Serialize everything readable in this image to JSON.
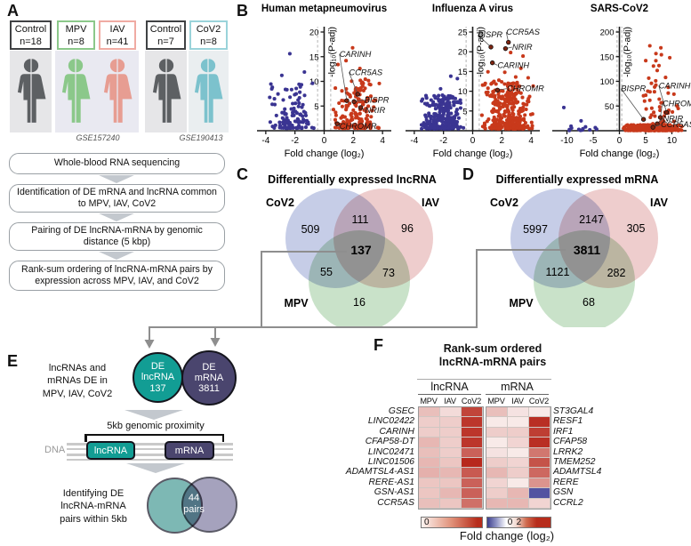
{
  "panelA": {
    "label": "A",
    "cohorts": [
      {
        "group": "Control",
        "n": "n=18",
        "border": "#404244",
        "color": "#5d6063"
      },
      {
        "group": "MPV",
        "n": "n=8",
        "border": "#8bc88a",
        "color": "#8bc88a"
      },
      {
        "group": "IAV",
        "n": "n=41",
        "border": "#f0aba3",
        "color": "#e79d92"
      },
      {
        "group": "Control",
        "n": "n=7",
        "border": "#404244",
        "color": "#5d6063"
      },
      {
        "group": "CoV2",
        "n": "n=8",
        "border": "#9ad3da",
        "color": "#7cc2cd"
      }
    ],
    "studies": [
      "GSE157240",
      "GSE190413"
    ],
    "steps": [
      "Whole-blood RNA sequencing",
      "Identification of DE mRNA and lncRNA common to MPV, IAV, CoV2",
      "Pairing of DE lncRNA-mRNA by genomic distance (5 kbp)",
      "Rank-sum ordering of lncRNA-mRNA pairs by expression across MPV, IAV, and CoV2"
    ]
  },
  "panelB": {
    "label": "B"
  },
  "panelC": {
    "label": "C"
  },
  "panelD": {
    "label": "D"
  },
  "panelE": {
    "label": "E",
    "intro_lines": [
      "lncRNAs and",
      "mRNAs DE in",
      "MPV, IAV, CoV2"
    ],
    "lnc_circle": {
      "lines": [
        "DE",
        "lncRNA",
        "137"
      ],
      "color": "#129d94"
    },
    "mrna_circle": {
      "lines": [
        "DE",
        "mRNA",
        "3811"
      ],
      "color": "#4a456e"
    },
    "proximity_label": "5kb genomic proximity",
    "dna_label": "DNA",
    "lnc_box": "lncRNA",
    "mrna_box": "mRNA",
    "result_lines": [
      "Identifying DE",
      "lncRNA-mRNA",
      "pairs within 5kb"
    ],
    "venn": {
      "line1": "44",
      "line2": "pairs",
      "left_color": "#7db8b4",
      "right_color": "#a5a2bd"
    }
  },
  "panelF": {
    "label": "F"
  },
  "chart_data": [
    {
      "id": "volcano_mpv",
      "type": "scatter",
      "subtype": "volcano",
      "title": "Human metapneumovirus",
      "xlabel": "Fold change (log₂)",
      "ylabel": "-log₁₀(P-adj)",
      "xlim": [
        -4.6,
        4.6
      ],
      "ylim": [
        0,
        20
      ],
      "xticks": [
        -4,
        -2,
        0,
        2,
        4
      ],
      "yticks": [
        5,
        10,
        15,
        20
      ],
      "threshold_x": [
        -0.45,
        0.45
      ],
      "series": [
        {
          "name": "downregulated",
          "color": "#3a3492",
          "n": 120,
          "x_range": [
            -3.9,
            -0.55
          ],
          "y_max": 9.5,
          "pow": 2.1,
          "seed": 11,
          "extra": [
            [
              -2.35,
              15.6
            ],
            [
              -2.9,
              11.2
            ],
            [
              -1.35,
              11.9
            ],
            [
              -3.55,
              8.8
            ],
            [
              -0.8,
              9.6
            ]
          ]
        },
        {
          "name": "upregulated",
          "color": "#c8391b",
          "n": 175,
          "x_range": [
            0.55,
            3.95
          ],
          "y_max": 10.5,
          "pow": 2.1,
          "seed": 22,
          "extra": [
            [
              1.95,
              16.8
            ],
            [
              1.5,
              14.2
            ],
            [
              2.45,
              12.6
            ],
            [
              0.95,
              13.4
            ],
            [
              3.1,
              9.4
            ],
            [
              2.8,
              8.6
            ],
            [
              3.5,
              6.2
            ]
          ]
        }
      ],
      "labeled_genes": [
        {
          "name": "CARINH",
          "x": 1.55,
          "y": 6.1,
          "lx": 1.05,
          "ly": 15.0
        },
        {
          "name": "CCR5AS",
          "x": 2.3,
          "y": 7.4,
          "lx": 1.7,
          "ly": 11.3
        },
        {
          "name": "BISPR",
          "x": 2.05,
          "y": 5.9,
          "lx": 2.75,
          "ly": 5.7
        },
        {
          "name": "NRIR",
          "x": 2.5,
          "y": 4.7,
          "lx": 2.8,
          "ly": 3.6
        },
        {
          "name": "CHROMR",
          "x": 0.9,
          "y": 1.4,
          "lx": 1.05,
          "ly": 0.35
        }
      ]
    },
    {
      "id": "volcano_iav",
      "type": "scatter",
      "subtype": "volcano",
      "title": "Influenza A virus",
      "xlabel": "Fold change (log₂)",
      "ylabel": "-log₁₀(P-adj)",
      "xlim": [
        -4.6,
        4.6
      ],
      "ylim": [
        0,
        25
      ],
      "xticks": [
        -4,
        -2,
        0,
        2,
        4
      ],
      "yticks": [
        5,
        10,
        15,
        20,
        25
      ],
      "threshold_x": [
        -0.45,
        0.45
      ],
      "series": [
        {
          "name": "downregulated",
          "color": "#3a3492",
          "n": 270,
          "x_range": [
            -3.7,
            -0.55
          ],
          "y_max": 9.0,
          "pow": 1.9,
          "seed": 33,
          "extra": [
            [
              -1.05,
              13.2
            ],
            [
              -1.5,
              13.8
            ],
            [
              -2.2,
              10.6
            ],
            [
              -3.2,
              8.9
            ]
          ]
        },
        {
          "name": "upregulated",
          "color": "#c8391b",
          "n": 340,
          "x_range": [
            0.55,
            4.25
          ],
          "y_max": 12.5,
          "pow": 2.1,
          "seed": 44,
          "extra": [
            [
              3.45,
              18.9
            ],
            [
              2.6,
              19.8
            ],
            [
              1.05,
              14.9
            ],
            [
              3.8,
              13.4
            ],
            [
              4.15,
              11.3
            ],
            [
              2.2,
              14.8
            ],
            [
              1.8,
              12.8
            ],
            [
              3.05,
              11.9
            ],
            [
              3.3,
              15.8
            ],
            [
              2.95,
              13.6
            ]
          ]
        }
      ],
      "labeled_genes": [
        {
          "name": "BISPR",
          "x": 1.25,
          "y": 21.2,
          "lx": 0.35,
          "ly": 23.6
        },
        {
          "name": "CCR5AS",
          "x": 2.45,
          "y": 22.4,
          "lx": 2.3,
          "ly": 24.3
        },
        {
          "name": "NRIR",
          "x": 2.25,
          "y": 20.8,
          "lx": 2.7,
          "ly": 20.5
        },
        {
          "name": "CARINH",
          "x": 1.35,
          "y": 17.2,
          "lx": 1.7,
          "ly": 15.9
        },
        {
          "name": "CHROMR",
          "x": 1.7,
          "y": 10.3,
          "lx": 2.35,
          "ly": 10.0
        }
      ]
    },
    {
      "id": "volcano_sars",
      "type": "scatter",
      "subtype": "volcano",
      "title": "SARS-CoV2",
      "xlabel": "Fold change (log₂)",
      "ylabel": "-log₁₀(P-adj)",
      "xlim": [
        -12.8,
        12.8
      ],
      "ylim": [
        0,
        200
      ],
      "xticks": [
        -10,
        -5,
        0,
        5,
        10
      ],
      "yticks": [
        50,
        100,
        150,
        200
      ],
      "threshold_x": [
        -0.45,
        0.45
      ],
      "series": [
        {
          "name": "downregulated",
          "color": "#3a3492",
          "n": 12,
          "x_range": [
            -11,
            -1.3
          ],
          "y_max": 10,
          "pow": 1.5,
          "seed": 55,
          "extra": [
            [
              -10.6,
              47
            ],
            [
              -7.3,
              20
            ]
          ]
        },
        {
          "name": "upregulated_base",
          "color": "#c8391b",
          "n": 320,
          "x_range": [
            0.5,
            12.2
          ],
          "y_max": 12,
          "pow": 1.6,
          "seed": 66,
          "extra": []
        },
        {
          "name": "upregulated_high",
          "color": "#c8391b",
          "n": 60,
          "x_range": [
            3.0,
            11.6
          ],
          "y_max": 165,
          "pow": 2.3,
          "seed": 77,
          "extra": [
            [
              5.8,
              172
            ],
            [
              7.9,
              168
            ],
            [
              9.6,
              148
            ],
            [
              6.5,
              131
            ],
            [
              7.2,
              122
            ],
            [
              8.8,
              108
            ],
            [
              6.1,
              96
            ],
            [
              9.3,
              88
            ],
            [
              5.4,
              80
            ],
            [
              10.4,
              74
            ],
            [
              7.6,
              64
            ],
            [
              8.2,
              57
            ],
            [
              11.2,
              45
            ],
            [
              10.1,
              38
            ],
            [
              4.8,
              60
            ],
            [
              5.1,
              44
            ]
          ]
        }
      ],
      "labeled_genes": [
        {
          "name": "BISPR",
          "x": 4.6,
          "y": 23,
          "lx": 0.3,
          "ly": 80
        },
        {
          "name": "CARINH",
          "x": 9.0,
          "y": 37,
          "lx": 7.5,
          "ly": 86
        },
        {
          "name": "CHROMR",
          "x": 7.8,
          "y": 27,
          "lx": 8.2,
          "ly": 50
        },
        {
          "name": "NRIR",
          "x": 7.2,
          "y": 14,
          "lx": 8.3,
          "ly": 19
        },
        {
          "name": "CCR5AS",
          "x": 6.4,
          "y": 7,
          "lx": 7.9,
          "ly": 7
        }
      ]
    },
    {
      "id": "venn_lncRNA",
      "type": "venn3",
      "title": "Differentially expressed lncRNA",
      "set_names": {
        "a": "CoV2",
        "b": "IAV",
        "c": "MPV"
      },
      "counts": {
        "a_only": "509",
        "b_only": "96",
        "c_only": "16",
        "ab": "111",
        "ac": "55",
        "bc": "73",
        "abc": "137"
      },
      "colors": {
        "a": "#98a4d4",
        "b": "#e0a4a4",
        "c": "#9cca9c"
      }
    },
    {
      "id": "venn_mRNA",
      "type": "venn3",
      "title": "Differentially expressed mRNA",
      "set_names": {
        "a": "CoV2",
        "b": "IAV",
        "c": "MPV"
      },
      "counts": {
        "a_only": "5997",
        "b_only": "305",
        "c_only": "68",
        "ab": "2147",
        "ac": "1121",
        "bc": "282",
        "abc": "3811"
      },
      "colors": {
        "a": "#98a4d4",
        "b": "#e0a4a4",
        "c": "#9cca9c"
      }
    },
    {
      "id": "heatmap_pairs",
      "type": "heatmap",
      "title_line1": "Rank-sum ordered",
      "title_line2": "lncRNA-mRNA pairs",
      "col_groups": [
        "lncRNA",
        "mRNA"
      ],
      "columns": [
        "MPV",
        "IAV",
        "CoV2"
      ],
      "value_meaning": "Fold change (log₂); red = up, blue = down",
      "rows": [
        {
          "lncRNA": "GSEC",
          "mRNA": "ST3GAL4",
          "lncRNA_values": [
            0.9,
            0.5,
            2.6
          ],
          "mRNA_values": [
            0.9,
            0.4,
            0.3
          ]
        },
        {
          "lncRNA": "LINC02422",
          "mRNA": "RESF1",
          "lncRNA_values": [
            0.7,
            0.7,
            2.8
          ],
          "mRNA_values": [
            0.3,
            0.3,
            2.9
          ]
        },
        {
          "lncRNA": "CARINH",
          "mRNA": "IRF1",
          "lncRNA_values": [
            0.7,
            0.7,
            2.8
          ],
          "mRNA_values": [
            0.7,
            0.7,
            2.7
          ]
        },
        {
          "lncRNA": "CFAP58-DT",
          "mRNA": "CFAP58",
          "lncRNA_values": [
            1.0,
            0.7,
            2.8
          ],
          "mRNA_values": [
            0.3,
            0.6,
            2.9
          ]
        },
        {
          "lncRNA": "LINC02471",
          "mRNA": "LRRK2",
          "lncRNA_values": [
            0.9,
            0.7,
            2.2
          ],
          "mRNA_values": [
            0.4,
            0.3,
            1.9
          ]
        },
        {
          "lncRNA": "LINC01506",
          "mRNA": "TMEM252",
          "lncRNA_values": [
            1.0,
            0.8,
            3.0
          ],
          "mRNA_values": [
            0.7,
            0.6,
            2.4
          ]
        },
        {
          "lncRNA": "ADAMTSL4-AS1",
          "mRNA": "ADAMTSL4",
          "lncRNA_values": [
            1.1,
            1.0,
            2.3
          ],
          "mRNA_values": [
            1.0,
            0.7,
            2.1
          ]
        },
        {
          "lncRNA": "RERE-AS1",
          "mRNA": "RERE",
          "lncRNA_values": [
            0.8,
            0.8,
            2.2
          ],
          "mRNA_values": [
            0.6,
            0.3,
            1.5
          ]
        },
        {
          "lncRNA": "GSN-AS1",
          "mRNA": "GSN",
          "lncRNA_values": [
            0.8,
            1.0,
            2.2
          ],
          "mRNA_values": [
            0.7,
            1.0,
            -2.6
          ]
        },
        {
          "lncRNA": "CCR5AS",
          "mRNA": "CCRL2",
          "lncRNA_values": [
            0.9,
            0.8,
            2.0
          ],
          "mRNA_values": [
            1.0,
            1.0,
            0.6
          ]
        }
      ],
      "colorbar_left": {
        "label": "0"
      },
      "colorbar_right": {
        "labels": [
          "0",
          "2"
        ]
      },
      "xlabel": "Fold change (log₂)"
    }
  ]
}
